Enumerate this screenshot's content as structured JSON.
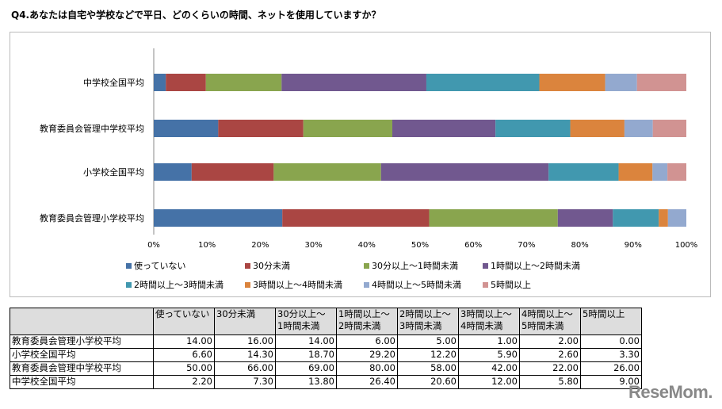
{
  "title": "Q4.あなたは自宅や学校などで平日、どのくらいの時間、ネットを使用していますか？",
  "chart_data": {
    "type": "bar",
    "stacked_percent": true,
    "categories": [
      "中学校全国平均",
      "教育委員会管理中学校平均",
      "小学校全国平均",
      "教育委員会管理小学校平均"
    ],
    "series": [
      {
        "name": "使っていない",
        "color": "#4572A7",
        "values": [
          2.2,
          50,
          6.6,
          14
        ]
      },
      {
        "name": "30分未満",
        "color": "#AA4643",
        "values": [
          7.3,
          66,
          14.3,
          16
        ]
      },
      {
        "name": "30分以上～1時間未満",
        "color": "#89A54E",
        "values": [
          13.8,
          69,
          18.7,
          14
        ]
      },
      {
        "name": "1時間以上～2時間未満",
        "color": "#71588F",
        "values": [
          26.4,
          80,
          29.2,
          6
        ]
      },
      {
        "name": "2時間以上～3時間未満",
        "color": "#4198AF",
        "values": [
          20.6,
          58,
          12.2,
          5
        ]
      },
      {
        "name": "3時間以上～4時間未満",
        "color": "#DB843D",
        "values": [
          12,
          42,
          5.9,
          1
        ]
      },
      {
        "name": "4時間以上～5時間未満",
        "color": "#93A9CF",
        "values": [
          5.8,
          22,
          2.6,
          2
        ]
      },
      {
        "name": "5時間以上",
        "color": "#D19392",
        "values": [
          9,
          26,
          3.3,
          0
        ]
      }
    ],
    "x_ticks": [
      "0%",
      "10%",
      "20%",
      "30%",
      "40%",
      "50%",
      "60%",
      "70%",
      "80%",
      "90%",
      "100%"
    ],
    "xlim": [
      0,
      100
    ],
    "legend": "bottom"
  },
  "table": {
    "headers": [
      "",
      "使っていない",
      "30分未満",
      "30分以上～\n1時間未満",
      "1時間以上～\n2時間未満",
      "2時間以上～\n3時間未満",
      "3時間以上～\n4時間未満",
      "4時間以上～\n5時間未満",
      "5時間以上"
    ],
    "rows": [
      [
        "教育委員会管理小学校平均",
        "14.00",
        "16.00",
        "14.00",
        "6.00",
        "5.00",
        "1.00",
        "2.00",
        "0.00"
      ],
      [
        "小学校全国平均",
        "6.60",
        "14.30",
        "18.70",
        "29.20",
        "12.20",
        "5.90",
        "2.60",
        "3.30"
      ],
      [
        "教育委員会管理中学校平均",
        "50.00",
        "66.00",
        "69.00",
        "80.00",
        "58.00",
        "42.00",
        "22.00",
        "26.00"
      ],
      [
        "中学校全国平均",
        "2.20",
        "7.30",
        "13.80",
        "26.40",
        "20.60",
        "12.00",
        "5.80",
        "9.00"
      ]
    ]
  },
  "logo": "ReseMom."
}
